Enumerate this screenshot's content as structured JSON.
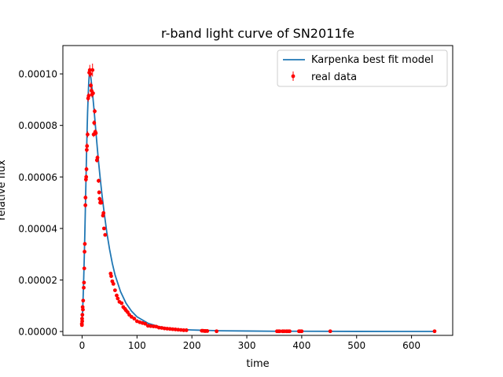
{
  "chart_data": {
    "type": "scatter",
    "title": "r-band light curve of SN2011fe",
    "xlabel": "time",
    "ylabel": "relative flux",
    "xlim": [
      -35,
      675
    ],
    "ylim": [
      -1.5e-06,
      0.000111
    ],
    "x_ticks": [
      0,
      100,
      200,
      300,
      400,
      500,
      600
    ],
    "y_ticks": [
      0.0,
      2e-05,
      4e-05,
      6e-05,
      8e-05,
      0.0001
    ],
    "x_tick_labels": [
      "0",
      "100",
      "200",
      "300",
      "400",
      "500",
      "600"
    ],
    "y_tick_labels": [
      "0.00000",
      "0.00002",
      "0.00004",
      "0.00006",
      "0.00008",
      "0.00010"
    ],
    "grid": false,
    "legend_position": "top-right",
    "legend": {
      "line_label": "Karpenka best fit model",
      "points_label": "real data"
    },
    "colors": {
      "model": "#1f77b4",
      "data": "#ff0000"
    },
    "series": [
      {
        "name": "Karpenka best fit model",
        "kind": "line",
        "x": [
          -0.5,
          1,
          2,
          3,
          4,
          5,
          6,
          7,
          8,
          9,
          10,
          11,
          12,
          13,
          14,
          15,
          16,
          17,
          18,
          19,
          20,
          22,
          24,
          26,
          28,
          30,
          33,
          36,
          40,
          45,
          50,
          55,
          60,
          70,
          80,
          90,
          100,
          120,
          140,
          160,
          180,
          200,
          250,
          300,
          350,
          400,
          500,
          642
        ],
        "y": [
          3e-06,
          8e-06,
          1.4e-05,
          2.1e-05,
          2.9e-05,
          3.8e-05,
          4.8e-05,
          5.8e-05,
          6.8e-05,
          7.7e-05,
          8.5e-05,
          9.1e-05,
          9.6e-05,
          9.95e-05,
          0.0001005,
          0.0001,
          9.85e-05,
          9.65e-05,
          9.45e-05,
          9.25e-05,
          9.02e-05,
          8.55e-05,
          8.05e-05,
          7.55e-05,
          7.05e-05,
          6.58e-05,
          5.95e-05,
          5.35e-05,
          4.65e-05,
          3.85e-05,
          3.2e-05,
          2.65e-05,
          2.2e-05,
          1.55e-05,
          1.1e-05,
          7.9e-06,
          5.7e-06,
          3.2e-06,
          1.9e-06,
          1.2e-06,
          8e-07,
          6e-07,
          3e-07,
          2e-07,
          1e-07,
          1e-07,
          5e-08,
          2e-08
        ]
      },
      {
        "name": "real data",
        "kind": "errorbar",
        "x": [
          -0.5,
          -0.3,
          0,
          0.2,
          0.5,
          1,
          1.5,
          2,
          3,
          3.5,
          4,
          4.5,
          5,
          6,
          6.2,
          7,
          7.5,
          8,
          8.5,
          9,
          10,
          11,
          12,
          13,
          14,
          15,
          16,
          17,
          18,
          19,
          20,
          21,
          22,
          23,
          24,
          25,
          27,
          28,
          30,
          31,
          32,
          33,
          34,
          35,
          38,
          39,
          40,
          42,
          52,
          53,
          55,
          57,
          60,
          63,
          65,
          68,
          72,
          75,
          78,
          80,
          83,
          86,
          90,
          95,
          100,
          105,
          110,
          115,
          120,
          125,
          130,
          135,
          140,
          145,
          150,
          155,
          160,
          165,
          170,
          175,
          180,
          185,
          190,
          218,
          220,
          223,
          225,
          228,
          245,
          355,
          358,
          360,
          365,
          368,
          372,
          375,
          378,
          395,
          397,
          400,
          452,
          642
        ],
        "y": [
          3e-06,
          2.5e-06,
          5e-06,
          4e-06,
          6.5e-06,
          9.5e-06,
          8.5e-06,
          1.2e-05,
          1.7e-05,
          1.9e-05,
          2.45e-05,
          3.1e-05,
          3.4e-05,
          4.9e-05,
          5.2e-05,
          5.9e-05,
          6e-05,
          6.3e-05,
          7.05e-05,
          7.2e-05,
          7.65e-05,
          9.05e-05,
          9.15e-05,
          0.0001005,
          0.0001015,
          0.0001,
          9.55e-05,
          9.35e-05,
          9.2e-05,
          0.0001015,
          9.25e-05,
          7.65e-05,
          8.1e-05,
          8.55e-05,
          7.75e-05,
          7.7e-05,
          6.65e-05,
          6.75e-05,
          5.85e-05,
          5.4e-05,
          5.15e-05,
          5e-05,
          5.05e-05,
          5e-05,
          4.5e-05,
          4.6e-05,
          4e-05,
          3.75e-05,
          2.25e-05,
          2.15e-05,
          1.95e-05,
          1.85e-05,
          1.6e-05,
          1.4e-05,
          1.28e-05,
          1.15e-05,
          1.1e-05,
          9.5e-06,
          8.8e-06,
          8.2e-06,
          7.5e-06,
          6.5e-06,
          5.7e-06,
          5e-06,
          4e-06,
          3.6e-06,
          3.3e-06,
          3e-06,
          2.2e-06,
          2.1e-06,
          2e-06,
          1.9e-06,
          1.5e-06,
          1.4e-06,
          1.2e-06,
          1.1e-06,
          1e-06,
          9e-07,
          8e-07,
          7e-07,
          6e-07,
          5e-07,
          5e-07,
          3e-07,
          3e-07,
          2e-07,
          2e-07,
          2e-07,
          1e-07,
          1e-07,
          1e-07,
          1e-07,
          1e-07,
          1e-07,
          1e-07,
          1e-07,
          1e-07,
          1e-07,
          1e-07,
          1e-07,
          1e-07,
          1e-07
        ],
        "yerr": [
          3e-07,
          3e-07,
          3e-07,
          3e-07,
          4e-07,
          4e-07,
          4e-07,
          5e-07,
          6e-07,
          6e-07,
          7e-07,
          8e-07,
          8e-07,
          9e-07,
          9e-07,
          1e-06,
          1e-06,
          1e-06,
          1.1e-06,
          1.1e-06,
          1.2e-06,
          1.3e-06,
          1.3e-06,
          1.5e-06,
          2e-06,
          1.3e-06,
          1.2e-06,
          1.2e-06,
          1.2e-06,
          2.5e-06,
          1.2e-06,
          1e-06,
          1e-06,
          1e-06,
          1e-06,
          1e-06,
          9e-07,
          9e-07,
          8e-07,
          8e-07,
          8e-07,
          7e-07,
          7e-07,
          7e-07,
          6e-07,
          6e-07,
          6e-07,
          6e-07,
          4e-07,
          4e-07,
          4e-07,
          4e-07,
          3e-07,
          3e-07,
          3e-07,
          3e-07,
          3e-07,
          2e-07,
          2e-07,
          2e-07,
          2e-07,
          2e-07,
          2e-07,
          2e-07,
          2e-07,
          1e-07,
          1e-07,
          1e-07,
          1e-07,
          1e-07,
          1e-07,
          1e-07,
          1e-07,
          1e-07,
          1e-07,
          1e-07,
          1e-07,
          1e-07,
          1e-07,
          1e-07,
          1e-07,
          1e-07,
          1e-07,
          1e-07,
          1e-07,
          1e-07,
          1e-07,
          1e-07,
          1e-07,
          1e-07,
          1e-07,
          1e-07,
          1e-07,
          1e-07,
          1e-07,
          1e-07,
          1e-07,
          1e-07,
          1e-07,
          1e-07,
          1e-07,
          1e-07
        ]
      }
    ]
  }
}
